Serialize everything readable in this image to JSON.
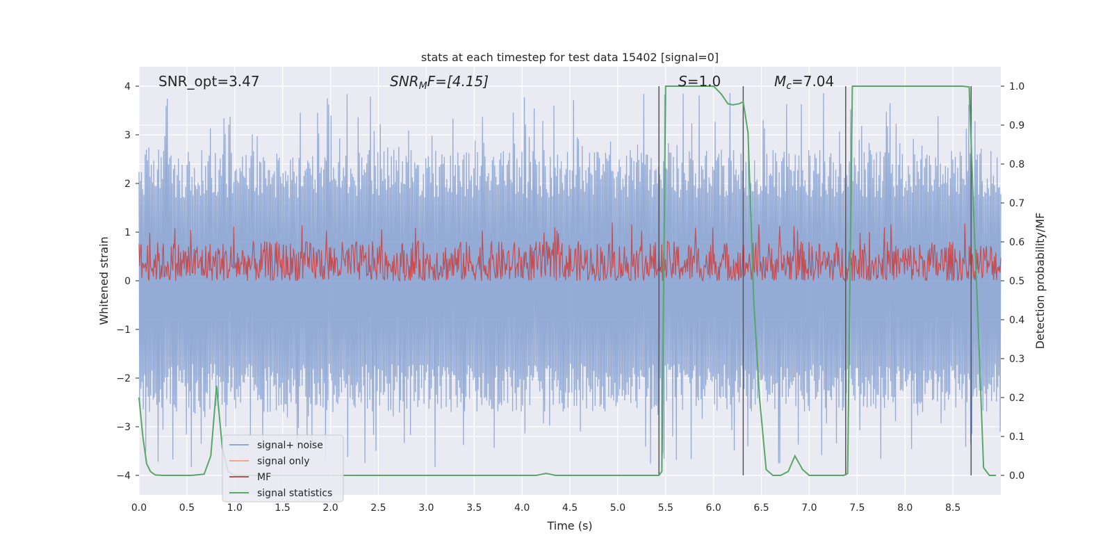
{
  "chart_data": {
    "type": "line",
    "title": "stats at each timestep for test data 15402 [signal=0]",
    "xlabel": "Time (s)",
    "ylabel": "Whitened strain",
    "y2label": "Detection probability/MF",
    "xlim": [
      0,
      9
    ],
    "ylim": [
      -4.4,
      4.4
    ],
    "y2lim": [
      -0.05,
      1.05
    ],
    "xticks": [
      "0.0",
      "0.5",
      "1.0",
      "1.5",
      "2.0",
      "2.5",
      "3.0",
      "3.5",
      "4.0",
      "4.5",
      "5.0",
      "5.5",
      "6.0",
      "6.5",
      "7.0",
      "7.5",
      "8.0",
      "8.5"
    ],
    "xtick_values": [
      0,
      0.5,
      1,
      1.5,
      2,
      2.5,
      3,
      3.5,
      4,
      4.5,
      5,
      5.5,
      6,
      6.5,
      7,
      7.5,
      8,
      8.5
    ],
    "yticks": [
      "4",
      "3",
      "2",
      "1",
      "0",
      "−1",
      "−2",
      "−3",
      "−4"
    ],
    "ytick_values": [
      4,
      3,
      2,
      1,
      0,
      -1,
      -2,
      -3,
      -4
    ],
    "y2ticks": [
      "1.0",
      "0.9",
      "0.8",
      "0.7",
      "0.6",
      "0.5",
      "0.4",
      "0.3",
      "0.2",
      "0.1",
      "0.0"
    ],
    "y2tick_values": [
      1.0,
      0.9,
      0.8,
      0.7,
      0.6,
      0.5,
      0.4,
      0.3,
      0.2,
      0.1,
      0.0
    ],
    "annotations": {
      "snr_opt": "SNR_opt=3.47",
      "snr_mf_prefix": "SNR",
      "snr_mf_sub": "M",
      "snr_mf_suffix": "F=[4.15]",
      "s_italic": "S",
      "s_value": "=1.0",
      "mc_italic": "M",
      "mc_sub": "c",
      "mc_value": "=7.04"
    },
    "legend": {
      "location": "lower-left",
      "entries": [
        {
          "label": "signal+ noise",
          "color": "#8fa8d4"
        },
        {
          "label": "signal only",
          "color": "#f0a88a"
        },
        {
          "label": "MF",
          "color": "#c44e52"
        },
        {
          "label": "signal statistics",
          "color": "#55a868"
        }
      ]
    },
    "series": [
      {
        "name": "signal+ noise",
        "axis": "left",
        "color": "#8fa8d4",
        "description": "whitened strain noise, roughly between -3.9 and 3.9",
        "envelope_typical": 2.0,
        "envelope_peak": 3.9
      },
      {
        "name": "MF",
        "axis": "right",
        "color": "#c44e52",
        "description": "matched filter output oscillating between ~0.50 and ~0.62",
        "range": [
          0.5,
          0.62
        ]
      },
      {
        "name": "signal statistics",
        "axis": "right",
        "color": "#55a868",
        "x": [
          0.0,
          0.04,
          0.08,
          0.12,
          0.17,
          0.25,
          0.4,
          0.55,
          0.68,
          0.75,
          0.81,
          0.87,
          0.93,
          1.0,
          1.2,
          2.0,
          3.0,
          4.0,
          4.15,
          4.25,
          4.35,
          5.0,
          5.38,
          5.43,
          5.46,
          5.5,
          5.56,
          5.7,
          6.0,
          6.08,
          6.15,
          6.2,
          6.27,
          6.31,
          6.36,
          6.42,
          6.48,
          6.55,
          6.62,
          6.7,
          6.78,
          6.85,
          6.93,
          7.0,
          7.2,
          7.36,
          7.4,
          7.45,
          7.5,
          7.6,
          8.0,
          8.6,
          8.67,
          8.72,
          8.77,
          8.82,
          8.88,
          8.95
        ],
        "y": [
          0.2,
          0.1,
          0.03,
          0.01,
          0.001,
          0.0,
          0.0,
          0.0,
          0.003,
          0.05,
          0.23,
          0.07,
          0.01,
          0.0,
          0.0,
          0.0,
          0.0,
          0.0,
          0.0,
          0.005,
          0.0,
          0.0,
          0.0,
          0.0,
          0.01,
          1.0,
          1.0,
          1.0,
          1.0,
          0.98,
          0.955,
          0.952,
          0.955,
          0.96,
          0.88,
          0.45,
          0.2,
          0.015,
          0.0,
          0.0,
          0.01,
          0.05,
          0.015,
          0.0,
          0.0,
          0.0,
          0.005,
          1.0,
          1.0,
          1.0,
          1.0,
          1.0,
          0.998,
          0.65,
          0.35,
          0.02,
          0.0,
          0.0
        ]
      }
    ],
    "vertical_lines_x": [
      5.43,
      6.31,
      7.38,
      8.69
    ]
  }
}
